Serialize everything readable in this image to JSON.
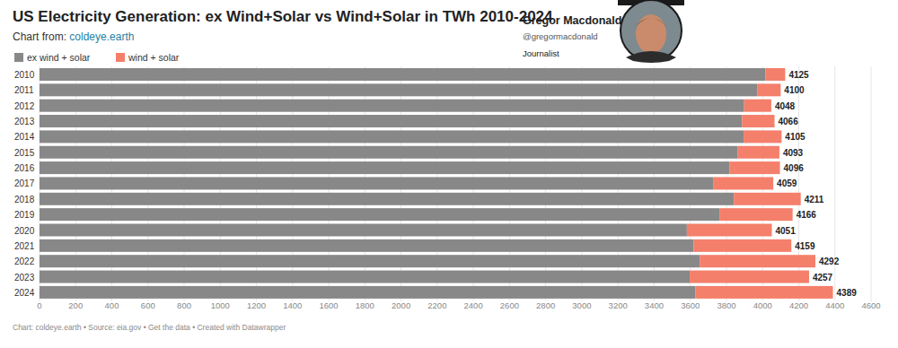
{
  "chart_data": {
    "type": "bar",
    "orientation": "horizontal",
    "stacked": true,
    "title": "US Electricity Generation: ex Wind+Solar vs Wind+Solar in TWh 2010-2024",
    "subtitle": "Chart from: coldeye.earth",
    "source": "Chart: coldeye.earth • Source: eia.gov • Get the data • Created with Datawrapper",
    "annotations": [
      "Gregor Macdonald",
      "@gregormacdonald",
      "Journalist"
    ],
    "categories": [
      "2010",
      "2011",
      "2012",
      "2013",
      "2014",
      "2015",
      "2016",
      "2017",
      "2018",
      "2019",
      "2020",
      "2021",
      "2022",
      "2023",
      "2024"
    ],
    "series": [
      {
        "name": "ex wind + solar",
        "color": "#888888",
        "values": [
          4015,
          3970,
          3898,
          3886,
          3895,
          3863,
          3816,
          3729,
          3841,
          3761,
          3581,
          3619,
          3652,
          3597,
          3629
        ]
      },
      {
        "name": "wind + solar",
        "color": "#f47f6b",
        "values": [
          110,
          130,
          150,
          180,
          210,
          230,
          280,
          330,
          370,
          405,
          470,
          540,
          640,
          660,
          760
        ]
      }
    ],
    "totals": [
      4125,
      4100,
      4048,
      4066,
      4105,
      4093,
      4096,
      4059,
      4211,
      4166,
      4051,
      4159,
      4292,
      4257,
      4389
    ],
    "xlim": [
      0,
      4600
    ],
    "xticks": [
      0,
      200,
      400,
      600,
      800,
      1000,
      1200,
      1400,
      1600,
      1800,
      2000,
      2200,
      2400,
      2600,
      2800,
      3000,
      3200,
      3400,
      3600,
      3800,
      4000,
      4200,
      4400,
      4600
    ],
    "grid": true,
    "legend": "top-left"
  }
}
